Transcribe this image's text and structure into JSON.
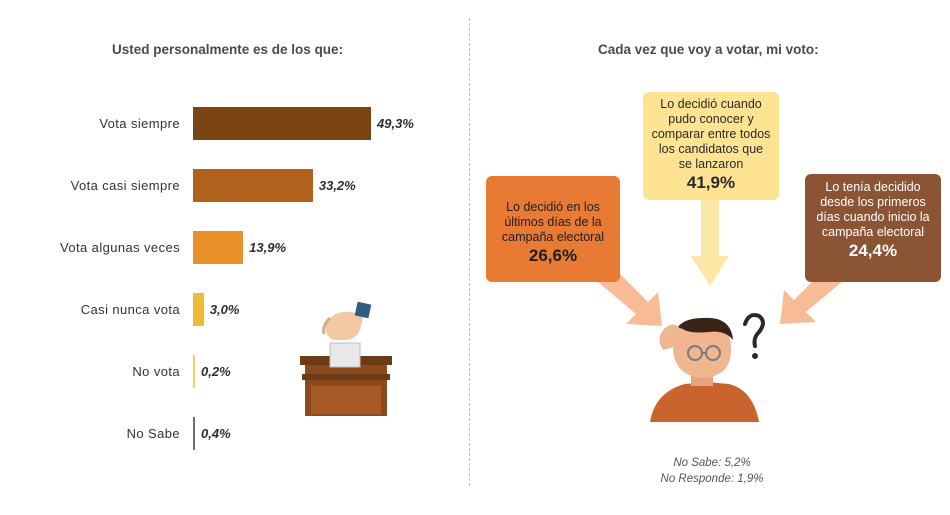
{
  "left_chart": {
    "title": "Usted personalmente  es de los que:",
    "chart_data": {
      "type": "bar",
      "orientation": "horizontal",
      "categories": [
        "Vota siempre",
        "Vota casi siempre",
        "Vota algunas veces",
        "Casi nunca vota",
        "No vota",
        "No Sabe"
      ],
      "values": [
        49.3,
        33.2,
        13.9,
        3.0,
        0.2,
        0.4
      ],
      "value_labels": [
        "49,3%",
        "33,2%",
        "13,9%",
        "3,0%",
        "0,2%",
        "0,4%"
      ],
      "colors": [
        "#7a4512",
        "#b0621d",
        "#e8912b",
        "#f0b93a",
        "#f3cf60",
        "#6e6e6e"
      ],
      "xlim": [
        0,
        49.3
      ]
    }
  },
  "right_chart": {
    "title": "Cada vez que voy a votar, mi voto:",
    "chart_data": {
      "type": "table",
      "items": [
        {
          "text": "Lo decidió en los últimos días de la campaña electoral",
          "value": 26.6,
          "label": "26,6%",
          "color": "#e87a33"
        },
        {
          "text": "Lo decidió cuando pudo conocer y comparar entre todos los candidatos que se lanzaron",
          "value": 41.9,
          "label": "41,9%",
          "color": "#fde392"
        },
        {
          "text": "Lo tenía decidido desde los primeros días cuando inicio la campaña electoral",
          "value": 24.4,
          "label": "24,4%",
          "color": "#8b5435"
        }
      ]
    },
    "notes": [
      "No Sabe: 5,2%",
      "No Responde: 1,9%"
    ]
  }
}
